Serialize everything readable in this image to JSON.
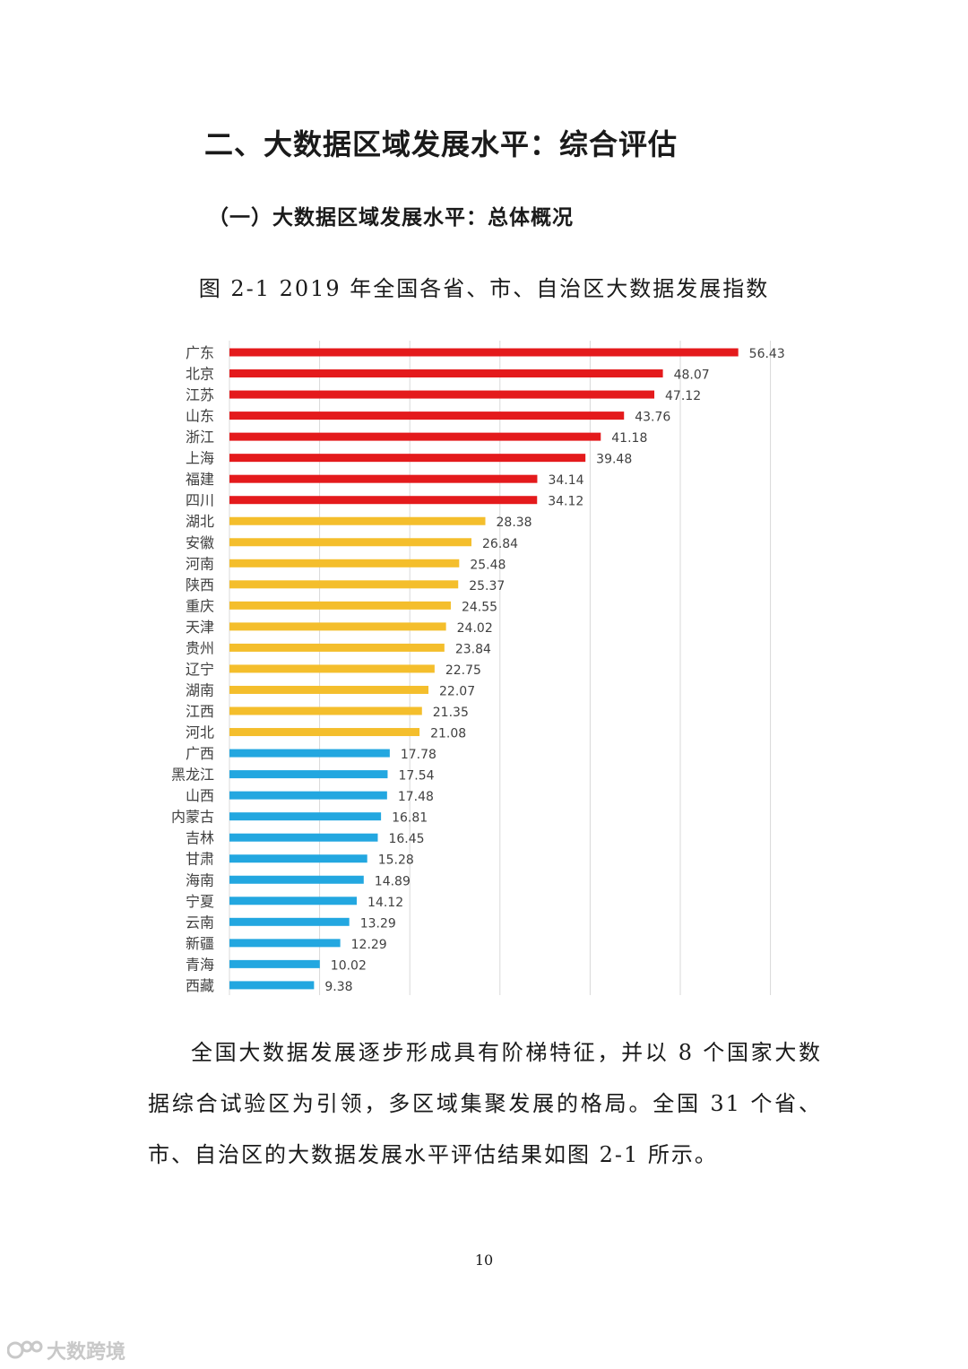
{
  "heading": "二、大数据区域发展水平：综合评估",
  "subheading": "（一）大数据区域发展水平：总体概况",
  "figure_caption": "图 2-1 2019 年全国各省、市、自治区大数据发展指数",
  "chart_data": {
    "type": "bar",
    "orientation": "horizontal",
    "title": "图 2-1 2019 年全国各省、市、自治区大数据发展指数",
    "xlabel": "",
    "ylabel": "",
    "xlim": [
      0,
      60
    ],
    "grid": true,
    "tier_colors": {
      "high": "#e41a1c",
      "mid": "#f4be2c",
      "low": "#23a7e0"
    },
    "categories": [
      "广东",
      "北京",
      "江苏",
      "山东",
      "浙江",
      "上海",
      "福建",
      "四川",
      "湖北",
      "安徽",
      "河南",
      "陕西",
      "重庆",
      "天津",
      "贵州",
      "辽宁",
      "湖南",
      "江西",
      "河北",
      "广西",
      "黑龙江",
      "山西",
      "内蒙古",
      "吉林",
      "甘肃",
      "海南",
      "宁夏",
      "云南",
      "新疆",
      "青海",
      "西藏"
    ],
    "values": [
      56.43,
      48.07,
      47.12,
      43.76,
      41.18,
      39.48,
      34.14,
      34.12,
      28.38,
      26.84,
      25.48,
      25.37,
      24.55,
      24.02,
      23.84,
      22.75,
      22.07,
      21.35,
      21.08,
      17.78,
      17.54,
      17.48,
      16.81,
      16.45,
      15.28,
      14.89,
      14.12,
      13.29,
      12.29,
      10.02,
      9.38
    ],
    "tiers": [
      "high",
      "high",
      "high",
      "high",
      "high",
      "high",
      "high",
      "high",
      "mid",
      "mid",
      "mid",
      "mid",
      "mid",
      "mid",
      "mid",
      "mid",
      "mid",
      "mid",
      "mid",
      "low",
      "low",
      "low",
      "low",
      "low",
      "low",
      "low",
      "low",
      "low",
      "low",
      "low",
      "low"
    ]
  },
  "paragraph": "全国大数据发展逐步形成具有阶梯特征，并以 8 个国家大数据综合试验区为引领，多区域集聚发展的格局。全国 31 个省、市、自治区的大数据发展水平评估结果如图 2-1 所示。",
  "page_number": "10",
  "watermark": {
    "text": "大数跨境",
    "icon": "brand-logo-icon"
  }
}
